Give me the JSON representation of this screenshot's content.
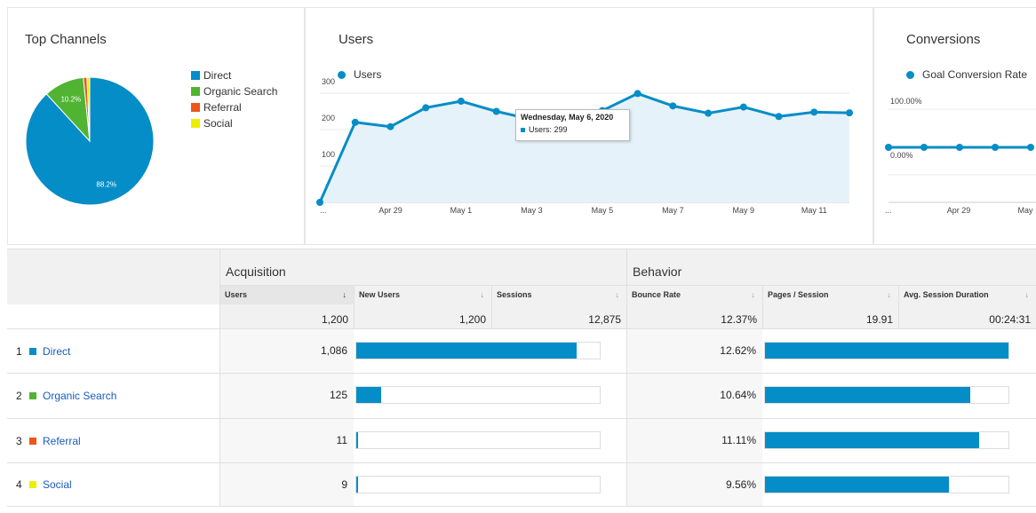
{
  "colors": {
    "accent": "#058dc7",
    "direct": "#058dc7",
    "organic": "#50b432",
    "referral": "#ed561b",
    "social": "#edef00"
  },
  "channels_card": {
    "title": "Top Channels",
    "legend": [
      {
        "label": "Direct",
        "color": "#058dc7"
      },
      {
        "label": "Organic Search",
        "color": "#50b432"
      },
      {
        "label": "Referral",
        "color": "#ed561b"
      },
      {
        "label": "Social",
        "color": "#edef00"
      }
    ],
    "chart_data": {
      "type": "pie",
      "slices": [
        {
          "label": "Direct",
          "value": 88.2,
          "color": "#058dc7",
          "data_label": "88.2%"
        },
        {
          "label": "Organic Search",
          "value": 10.2,
          "color": "#50b432",
          "data_label": "10.2%"
        },
        {
          "label": "Referral",
          "value": 0.9,
          "color": "#ed561b",
          "data_label": ""
        },
        {
          "label": "Social",
          "value": 0.7,
          "color": "#edef00",
          "data_label": ""
        }
      ]
    }
  },
  "users_card": {
    "title": "Users",
    "series_label": "Users",
    "tooltip": {
      "title": "Wednesday, May 6, 2020",
      "text": "Users: 299"
    },
    "chart_data": {
      "type": "area",
      "x_ticks": [
        "...",
        "Apr 29",
        "May 1",
        "May 3",
        "May 5",
        "May 7",
        "May 9",
        "May 11"
      ],
      "y_ticks": [
        "100",
        "200",
        "300"
      ],
      "ylim": [
        0,
        300
      ],
      "series": [
        {
          "name": "Users",
          "values": [
            0,
            220,
            208,
            260,
            278,
            250,
            228,
            245,
            252,
            299,
            265,
            245,
            262,
            236,
            248,
            246
          ]
        }
      ]
    }
  },
  "conv_card": {
    "title": "Conversions",
    "series_label": "Goal Conversion Rate",
    "chart_data": {
      "type": "line",
      "x_ticks": [
        "...",
        "Apr 29",
        "May"
      ],
      "y_ticks": [
        "0.00%",
        "100.00%"
      ],
      "series": [
        {
          "name": "Goal Conversion Rate",
          "values": [
            0,
            0,
            0,
            0,
            0
          ]
        }
      ]
    }
  },
  "table": {
    "groups": {
      "acquisition": "Acquisition",
      "behavior": "Behavior"
    },
    "columns": [
      {
        "label": "Users",
        "sort": "↓"
      },
      {
        "label": "New Users",
        "sort": "↓"
      },
      {
        "label": "Sessions",
        "sort": "↓"
      },
      {
        "label": "Bounce Rate",
        "sort": "↓"
      },
      {
        "label": "Pages / Session",
        "sort": "↓"
      },
      {
        "label": "Avg. Session Duration",
        "sort": "↓"
      }
    ],
    "totals": [
      "1,200",
      "1,200",
      "12,875",
      "12.37%",
      "19.91",
      "00:24:31"
    ],
    "rows": [
      {
        "num": "1",
        "channel": "Direct",
        "color": "#058dc7",
        "users": "1,086",
        "users_share": 0.905,
        "bounce": "12.62%",
        "bounce_share": 1.0
      },
      {
        "num": "2",
        "channel": "Organic Search",
        "color": "#50b432",
        "users": "125",
        "users_share": 0.104,
        "bounce": "10.64%",
        "bounce_share": 0.843
      },
      {
        "num": "3",
        "channel": "Referral",
        "color": "#ed561b",
        "users": "11",
        "users_share": 0.009,
        "bounce": "11.11%",
        "bounce_share": 0.88
      },
      {
        "num": "4",
        "channel": "Social",
        "color": "#edef00",
        "users": "9",
        "users_share": 0.008,
        "bounce": "9.56%",
        "bounce_share": 0.757
      }
    ]
  }
}
